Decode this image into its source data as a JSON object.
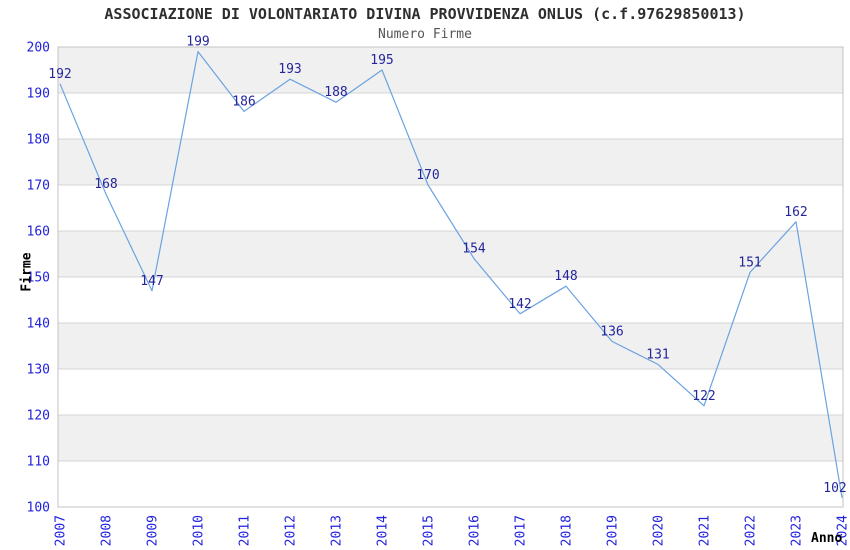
{
  "chart_data": {
    "type": "line",
    "title": "ASSOCIAZIONE DI VOLONTARIATO DIVINA PROVVIDENZA ONLUS (c.f.97629850013)",
    "subtitle": "Numero Firme",
    "xlabel": "Anno",
    "ylabel": "Firme",
    "categories": [
      "2007",
      "2008",
      "2009",
      "2010",
      "2011",
      "2012",
      "2013",
      "2014",
      "2015",
      "2016",
      "2017",
      "2018",
      "2019",
      "2020",
      "2021",
      "2022",
      "2023",
      "2024"
    ],
    "values": [
      192,
      168,
      147,
      199,
      186,
      193,
      188,
      195,
      170,
      154,
      142,
      148,
      136,
      131,
      122,
      151,
      162,
      102
    ],
    "ylim": [
      100,
      200
    ],
    "ytick_step": 10,
    "yticks": [
      100,
      110,
      120,
      130,
      140,
      150,
      160,
      170,
      180,
      190,
      200
    ],
    "grid": "horizontal",
    "band_fill": "alternating-gray",
    "legend": "none",
    "point_labels_visible": true,
    "colors": {
      "line": "#6ba3e0",
      "point_label": "#26269b",
      "tick_label": "#2222dd",
      "title": "#2e2e2e",
      "subtitle": "#555555",
      "axis_title": "#000000",
      "band": "#f0f0f0",
      "gridline": "#d4d4d4",
      "plot_border": "#c3c3c3",
      "background": "#ffffff"
    }
  }
}
